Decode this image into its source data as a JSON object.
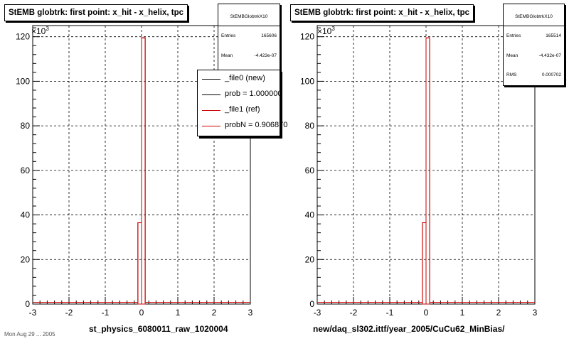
{
  "panels": [
    {
      "title": "StEMB globtrk: first point: x_hit - x_helix, tpc",
      "stats": {
        "name": "StEMBGlobtrkX10",
        "rows": [
          {
            "label": "Entries",
            "value": "165606"
          },
          {
            "label": "Mean",
            "value": "-4.423e-07"
          }
        ]
      },
      "exponent_label": "×10",
      "exponent_power": "3",
      "xtitle": "st_physics_6080011_raw_1020004",
      "legend": {
        "entries": [
          {
            "label": "_file0 (new)",
            "color": "#000000"
          },
          {
            "label": "prob = 1.000000",
            "color": "#000000"
          },
          {
            "label": "_file1 (ref)",
            "color": "#cc0000"
          },
          {
            "label": "probN = 0.906870",
            "color": "#cc0000"
          }
        ]
      }
    },
    {
      "title": "StEMB globtrk: first point: x_hit - x_helix, tpc",
      "stats": {
        "name": "StEMBGlobtrkX10",
        "rows": [
          {
            "label": "Entries",
            "value": "165514"
          },
          {
            "label": "Mean",
            "value": "-4.432e-07"
          },
          {
            "label": "RMS",
            "value": "0.000702"
          }
        ]
      },
      "exponent_label": "×10",
      "exponent_power": "3",
      "xtitle": "new/daq_sl302.ittf/year_2005/CuCu62_MinBias/"
    }
  ],
  "footer": "Mon Aug 29 ... 2005",
  "chart_data": [
    {
      "type": "bar",
      "title": "StEMB globtrk: first point: x_hit - x_helix, tpc",
      "xlabel": "st_physics_6080011_raw_1020004",
      "ylabel": "",
      "xlim": [
        -3,
        3
      ],
      "ylim": [
        0,
        125
      ],
      "xticks": [
        -3,
        -2,
        -1,
        0,
        1,
        2,
        3
      ],
      "yticks": [
        0,
        20,
        40,
        60,
        80,
        100,
        120
      ],
      "y_scale_note": "×10^3",
      "grid": true,
      "bins": [
        {
          "x0": -0.1,
          "x1": 0.0,
          "value": 36.5
        },
        {
          "x0": 0.0,
          "x1": 0.1,
          "value": 119.5
        }
      ],
      "series": [
        {
          "name": "_file0 (new)",
          "color": "#000000"
        },
        {
          "name": "_file1 (ref)",
          "color": "#cc0000"
        }
      ]
    },
    {
      "type": "bar",
      "title": "StEMB globtrk: first point: x_hit - x_helix, tpc",
      "xlabel": "new/daq_sl302.ittf/year_2005/CuCu62_MinBias/",
      "ylabel": "",
      "xlim": [
        -3,
        3
      ],
      "ylim": [
        0,
        125
      ],
      "xticks": [
        -3,
        -2,
        -1,
        0,
        1,
        2,
        3
      ],
      "yticks": [
        0,
        20,
        40,
        60,
        80,
        100,
        120
      ],
      "y_scale_note": "×10^3",
      "grid": true,
      "bins": [
        {
          "x0": -0.1,
          "x1": 0.0,
          "value": 36.5
        },
        {
          "x0": 0.0,
          "x1": 0.1,
          "value": 119.5
        }
      ],
      "series": [
        {
          "color": "#cc0000"
        }
      ]
    }
  ]
}
